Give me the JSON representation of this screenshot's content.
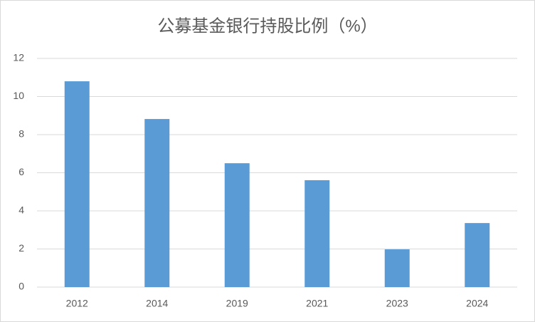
{
  "chart_data": {
    "type": "bar",
    "title": "公募基金银行持股比例（%）",
    "categories": [
      "2012",
      "2014",
      "2019",
      "2021",
      "2023",
      "2024"
    ],
    "values": [
      10.8,
      8.82,
      6.5,
      5.61,
      1.98,
      3.36
    ],
    "color": "#5b9bd5",
    "ylim": [
      0,
      12
    ],
    "yticks": [
      0,
      2,
      4,
      6,
      8,
      10,
      12
    ],
    "grid": true
  }
}
